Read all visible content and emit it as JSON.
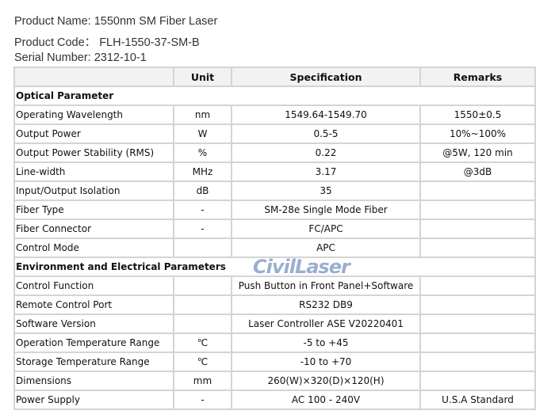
{
  "header": {
    "product_name": "Product Name: 1550nm SM Fiber Laser",
    "product_code": "Product Code：  FLH-1550-37-SM-B",
    "serial_number": "Serial Number: 2312-10-1"
  },
  "table": {
    "columns": [
      "",
      "Unit",
      "Specification",
      "Remarks"
    ],
    "rows": [
      {
        "section": "Optical Parameter"
      },
      {
        "param": "Operating Wavelength",
        "unit": "nm",
        "spec": "1549.64-1549.70",
        "remarks": "1550±0.5"
      },
      {
        "param": "Output Power",
        "unit": "W",
        "spec": "0.5-5",
        "remarks": "10%~100%"
      },
      {
        "param": "Output Power Stability (RMS)",
        "unit": "%",
        "spec": "0.22",
        "remarks": "@5W, 120 min"
      },
      {
        "param": "Line-width",
        "unit": "MHz",
        "spec": "3.17",
        "remarks": "@3dB"
      },
      {
        "param": "Input/Output Isolation",
        "unit": "dB",
        "spec": "35",
        "remarks": ""
      },
      {
        "param": "Fiber Type",
        "unit": "-",
        "spec": "SM-28e Single Mode Fiber",
        "remarks": ""
      },
      {
        "param": "Fiber Connector",
        "unit": "-",
        "spec": "FC/APC",
        "remarks": ""
      },
      {
        "param": "Control Mode",
        "unit": "",
        "spec": "APC",
        "remarks": ""
      },
      {
        "section": "Environment and Electrical Parameters"
      },
      {
        "param": "Control Function",
        "unit": "",
        "spec": "Push Button in Front Panel+Software",
        "remarks": ""
      },
      {
        "param": "Remote Control Port",
        "unit": "",
        "spec": "RS232 DB9",
        "remarks": ""
      },
      {
        "param": "Software Version",
        "unit": "",
        "spec": "Laser Controller ASE V20220401",
        "remarks": ""
      },
      {
        "param": "Operation Temperature Range",
        "unit": "℃",
        "spec": "-5 to +45",
        "remarks": ""
      },
      {
        "param": "Storage Temperature Range",
        "unit": "℃",
        "spec": "-10 to +70",
        "remarks": ""
      },
      {
        "param": "Dimensions",
        "unit": "mm",
        "spec": "260(W)×320(D)×120(H)",
        "remarks": ""
      },
      {
        "param": "Power Supply",
        "unit": "-",
        "spec": "AC 100 - 240V",
        "remarks": "U.S.A Standard"
      }
    ]
  },
  "watermark": "CivilLaser"
}
